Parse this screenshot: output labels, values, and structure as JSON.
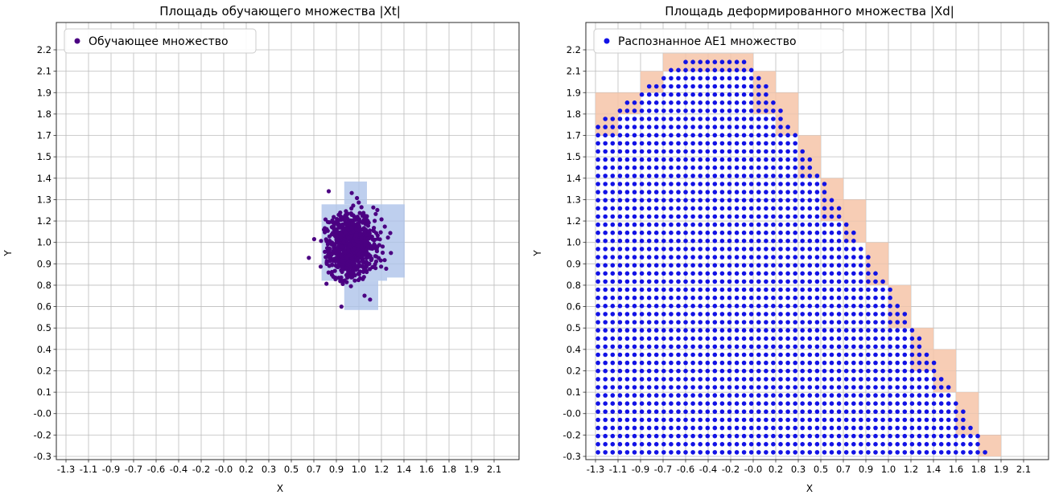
{
  "figure": {
    "background": "#ffffff",
    "grid_color": "#bdbdbd",
    "spine_color": "#2a2a2a",
    "text_color": "#000000",
    "legend_border_color": "#cccccc",
    "legend_background": "#ffffff"
  },
  "chart_data": [
    {
      "type": "scatter",
      "panel": "left",
      "title": "Площадь обучающего множества |Xt|",
      "xlabel": "X",
      "ylabel": "Y",
      "grid": true,
      "legend_position": "upper-left",
      "legend": {
        "label": "Обучающее множество",
        "marker_color": "#4b0082"
      },
      "x_tick_labels": [
        "-1.3",
        "-1.1",
        "-0.9",
        "-0.7",
        "-0.6",
        "-0.4",
        "-0.2",
        "-0.0",
        "0.2",
        "0.3",
        "0.5",
        "0.7",
        "0.9",
        "1.0",
        "1.2",
        "1.4",
        "1.6",
        "1.8",
        "1.9",
        "2.1"
      ],
      "y_tick_labels_top_to_bottom": [
        "2.2",
        "2.1",
        "1.9",
        "1.8",
        "1.7",
        "1.5",
        "1.4",
        "1.3",
        "1.2",
        "1.0",
        "0.9",
        "0.8",
        "0.6",
        "0.5",
        "0.4",
        "0.2",
        "0.1",
        "-0.0",
        "-0.2",
        "-0.3"
      ],
      "x_tick_value_range": [
        -1.3,
        2.1
      ],
      "y_tick_value_range": [
        -0.3,
        2.2
      ],
      "series": [
        {
          "name": "Обучающее множество",
          "kind": "gaussian_cluster",
          "center": [
            0.97,
            1.0
          ],
          "std": [
            0.095,
            0.1
          ],
          "count": 850,
          "color": "#4b0082",
          "marker_radius_px": 2.6,
          "seed": 7
        }
      ],
      "highlight_cells": {
        "color": "#aec3ea",
        "rects_xywh": [
          [
            0.73,
            0.78,
            0.52,
            0.47
          ],
          [
            0.91,
            1.25,
            0.18,
            0.14
          ],
          [
            1.25,
            0.8,
            0.14,
            0.45
          ],
          [
            0.91,
            0.6,
            0.27,
            0.18
          ]
        ]
      }
    },
    {
      "type": "scatter",
      "panel": "right",
      "title": "Площадь деформированного множества |Xd|",
      "xlabel": "X",
      "ylabel": "Y",
      "grid": true,
      "legend_position": "upper-left",
      "legend": {
        "label": "Распознанное АЕ1 множество",
        "marker_color": "#1212e6"
      },
      "x_tick_labels": [
        "-1.3",
        "-1.1",
        "-0.9",
        "-0.7",
        "-0.6",
        "-0.4",
        "-0.2",
        "-0.0",
        "0.2",
        "0.3",
        "0.5",
        "0.7",
        "0.9",
        "1.0",
        "1.2",
        "1.4",
        "1.6",
        "1.8",
        "1.9",
        "2.1"
      ],
      "y_tick_labels_top_to_bottom": [
        "2.2",
        "2.1",
        "1.9",
        "1.8",
        "1.7",
        "1.5",
        "1.4",
        "1.3",
        "1.2",
        "1.0",
        "0.9",
        "0.8",
        "0.6",
        "0.5",
        "0.4",
        "0.2",
        "0.1",
        "-0.0",
        "-0.2",
        "-0.3"
      ],
      "x_tick_value_range": [
        -1.3,
        2.1
      ],
      "y_tick_value_range": [
        -0.3,
        2.2
      ],
      "series": [
        {
          "name": "Распознанное АЕ1 множество",
          "kind": "lattice_in_polygon",
          "polygon": [
            [
              -1.3,
              1.73
            ],
            [
              -0.57,
              2.16
            ],
            [
              -0.09,
              2.16
            ],
            [
              1.85,
              -0.3
            ],
            [
              -1.3,
              -0.3
            ]
          ],
          "lattice_step": [
            0.058,
            0.05
          ],
          "color": "#1212e6",
          "marker_radius_px": 2.8
        }
      ],
      "boundary_cells": {
        "color": "#f6c4a8",
        "rule": "grid-cells-partially-covered-by-region"
      }
    }
  ]
}
